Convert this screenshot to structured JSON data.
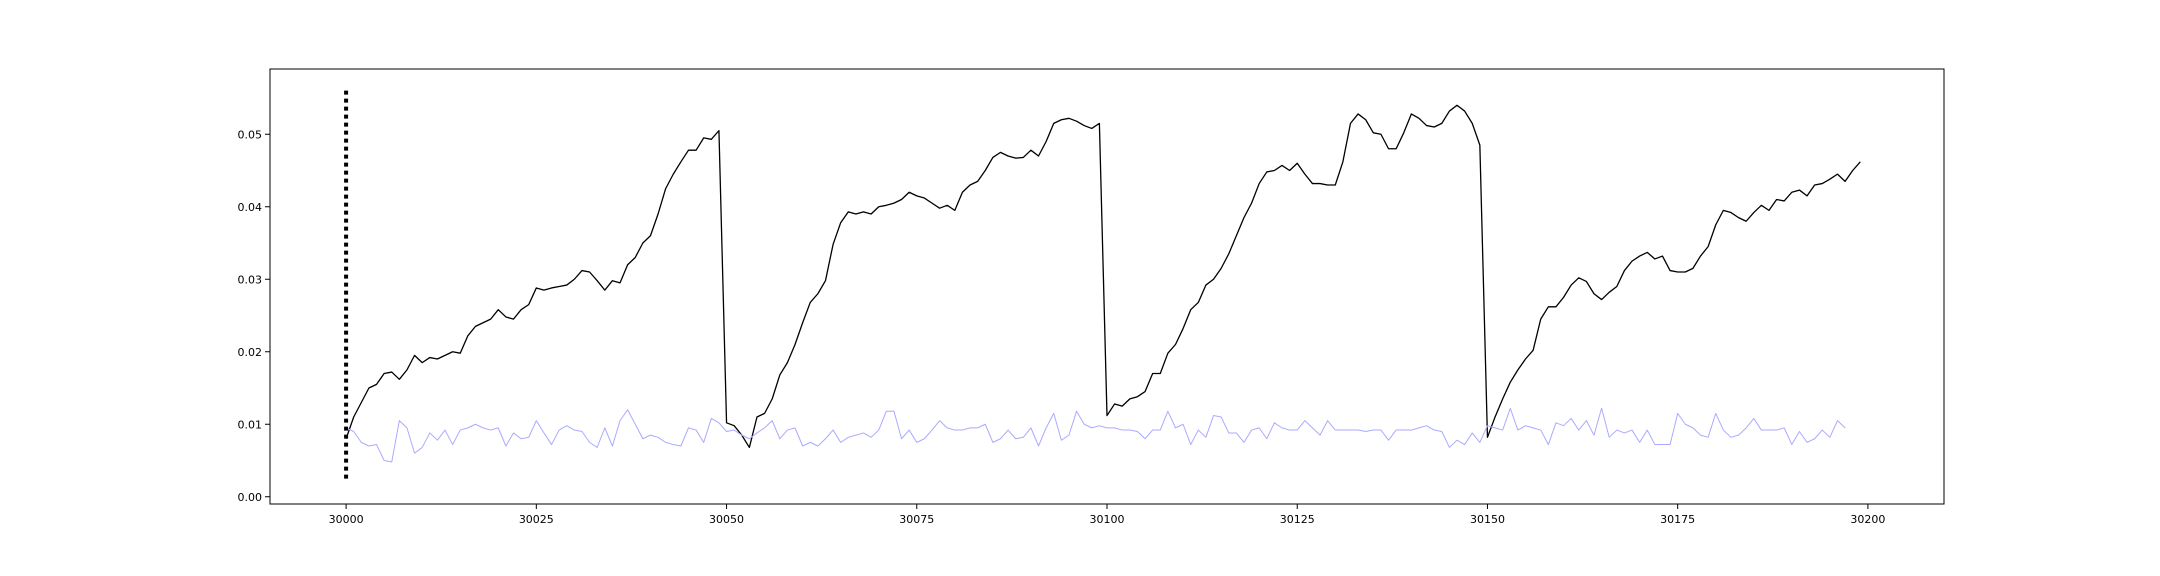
{
  "chart_data": {
    "type": "line",
    "title": "",
    "xlabel": "",
    "ylabel": "",
    "xlim": [
      29990,
      30210
    ],
    "ylim": [
      -0.001,
      0.059
    ],
    "grid": false,
    "legend": "none",
    "x_ticks": [
      30000,
      30025,
      30050,
      30075,
      30100,
      30125,
      30150,
      30175,
      30200
    ],
    "y_ticks": [
      0.0,
      0.01,
      0.02,
      0.03,
      0.04,
      0.05
    ],
    "x_tick_labels": [
      "30000",
      "30025",
      "30050",
      "30075",
      "30100",
      "30125",
      "30150",
      "30175",
      "30200"
    ],
    "y_tick_labels": [
      "0.00",
      "0.01",
      "0.02",
      "0.03",
      "0.04",
      "0.05"
    ],
    "vline": {
      "x": 30000,
      "ymin": 0.0025,
      "ymax": 0.0565,
      "style": "dotted",
      "color": "#000000"
    },
    "x_start": 30000,
    "series": [
      {
        "color": "#000000",
        "values": [
          0.008,
          0.011,
          0.013,
          0.015,
          0.0155,
          0.017,
          0.0172,
          0.0162,
          0.0175,
          0.0195,
          0.0185,
          0.0192,
          0.019,
          0.0195,
          0.02,
          0.0198,
          0.0222,
          0.0235,
          0.024,
          0.0245,
          0.0258,
          0.0248,
          0.0245,
          0.0258,
          0.0265,
          0.0288,
          0.0285,
          0.0288,
          0.029,
          0.0292,
          0.03,
          0.0312,
          0.031,
          0.0298,
          0.0285,
          0.0298,
          0.0295,
          0.032,
          0.033,
          0.035,
          0.036,
          0.039,
          0.0425,
          0.0445,
          0.0462,
          0.0478,
          0.0478,
          0.0495,
          0.0493,
          0.0505,
          0.0102,
          0.0098,
          0.0085,
          0.0068,
          0.011,
          0.0115,
          0.0135,
          0.0168,
          0.0185,
          0.021,
          0.024,
          0.0268,
          0.028,
          0.0298,
          0.0348,
          0.0378,
          0.0393,
          0.039,
          0.0393,
          0.039,
          0.04,
          0.0402,
          0.0405,
          0.041,
          0.042,
          0.0415,
          0.0412,
          0.0405,
          0.0398,
          0.0402,
          0.0395,
          0.042,
          0.043,
          0.0435,
          0.045,
          0.0468,
          0.0475,
          0.047,
          0.0467,
          0.0468,
          0.0478,
          0.047,
          0.049,
          0.0515,
          0.052,
          0.0522,
          0.0518,
          0.0512,
          0.0508,
          0.0515,
          0.0112,
          0.0128,
          0.0125,
          0.0135,
          0.0138,
          0.0145,
          0.017,
          0.017,
          0.0198,
          0.021,
          0.0232,
          0.0258,
          0.0268,
          0.0292,
          0.03,
          0.0315,
          0.0335,
          0.036,
          0.0385,
          0.0405,
          0.0432,
          0.0448,
          0.045,
          0.0457,
          0.045,
          0.046,
          0.0445,
          0.0432,
          0.0432,
          0.043,
          0.043,
          0.0462,
          0.0515,
          0.0528,
          0.052,
          0.0502,
          0.05,
          0.048,
          0.048,
          0.0502,
          0.0528,
          0.0522,
          0.0512,
          0.051,
          0.0515,
          0.0532,
          0.054,
          0.0532,
          0.0515,
          0.0485,
          0.0082,
          0.011,
          0.0135,
          0.0158,
          0.0175,
          0.019,
          0.0202,
          0.0245,
          0.0262,
          0.0262,
          0.0275,
          0.0292,
          0.0302,
          0.0297,
          0.028,
          0.0272,
          0.0282,
          0.029,
          0.0312,
          0.0325,
          0.0332,
          0.0337,
          0.0328,
          0.0332,
          0.0312,
          0.031,
          0.031,
          0.0315,
          0.0332,
          0.0345,
          0.0375,
          0.0395,
          0.0392,
          0.0385,
          0.038,
          0.0392,
          0.0402,
          0.0395,
          0.041,
          0.0408,
          0.042,
          0.0423,
          0.0415,
          0.043,
          0.0432,
          0.0438,
          0.0445,
          0.0435,
          0.045,
          0.0462
        ]
      },
      {
        "color": "#aaaaff",
        "values": [
          0.0095,
          0.009,
          0.0075,
          0.007,
          0.0072,
          0.005,
          0.0048,
          0.0105,
          0.0095,
          0.006,
          0.0068,
          0.0088,
          0.0078,
          0.0092,
          0.0072,
          0.0092,
          0.0095,
          0.01,
          0.0095,
          0.0092,
          0.0095,
          0.007,
          0.0088,
          0.008,
          0.0082,
          0.0105,
          0.0088,
          0.0072,
          0.0092,
          0.0098,
          0.0092,
          0.009,
          0.0075,
          0.0068,
          0.0095,
          0.007,
          0.0105,
          0.012,
          0.01,
          0.008,
          0.0085,
          0.0082,
          0.0075,
          0.0072,
          0.007,
          0.0095,
          0.0092,
          0.0075,
          0.0108,
          0.0102,
          0.009,
          0.0092,
          0.0085,
          0.008,
          0.0088,
          0.0095,
          0.0105,
          0.008,
          0.0092,
          0.0095,
          0.007,
          0.0075,
          0.007,
          0.008,
          0.0092,
          0.0075,
          0.0082,
          0.0085,
          0.0088,
          0.0082,
          0.0092,
          0.0118,
          0.0118,
          0.008,
          0.0092,
          0.0075,
          0.008,
          0.0092,
          0.0105,
          0.0095,
          0.0092,
          0.0092,
          0.0095,
          0.0095,
          0.01,
          0.0075,
          0.008,
          0.0092,
          0.008,
          0.0082,
          0.0095,
          0.007,
          0.0095,
          0.0115,
          0.0078,
          0.0085,
          0.0118,
          0.01,
          0.0095,
          0.0098,
          0.0095,
          0.0095,
          0.0092,
          0.0092,
          0.009,
          0.008,
          0.0092,
          0.0092,
          0.0118,
          0.0095,
          0.01,
          0.0072,
          0.0092,
          0.0082,
          0.0112,
          0.011,
          0.0088,
          0.0088,
          0.0075,
          0.0092,
          0.0095,
          0.008,
          0.0102,
          0.0095,
          0.0092,
          0.0092,
          0.0105,
          0.0095,
          0.0085,
          0.0105,
          0.0092,
          0.0092,
          0.0092,
          0.0092,
          0.009,
          0.0092,
          0.0092,
          0.0078,
          0.0092,
          0.0092,
          0.0092,
          0.0095,
          0.0098,
          0.0092,
          0.009,
          0.0068,
          0.0078,
          0.0072,
          0.0088,
          0.0075,
          0.0098,
          0.0095,
          0.0092,
          0.0122,
          0.0092,
          0.0098,
          0.0095,
          0.0092,
          0.0072,
          0.0102,
          0.0098,
          0.0108,
          0.0092,
          0.0105,
          0.0085,
          0.0122,
          0.0082,
          0.0092,
          0.0088,
          0.0092,
          0.0075,
          0.0092,
          0.0072,
          0.0072,
          0.0072,
          0.0115,
          0.01,
          0.0095,
          0.0085,
          0.0082,
          0.0115,
          0.0092,
          0.0082,
          0.0085,
          0.0095,
          0.0108,
          0.0092,
          0.0092,
          0.0092,
          0.0095,
          0.0072,
          0.009,
          0.0075,
          0.008,
          0.0092,
          0.0082,
          0.0105,
          0.0095
        ]
      }
    ]
  }
}
